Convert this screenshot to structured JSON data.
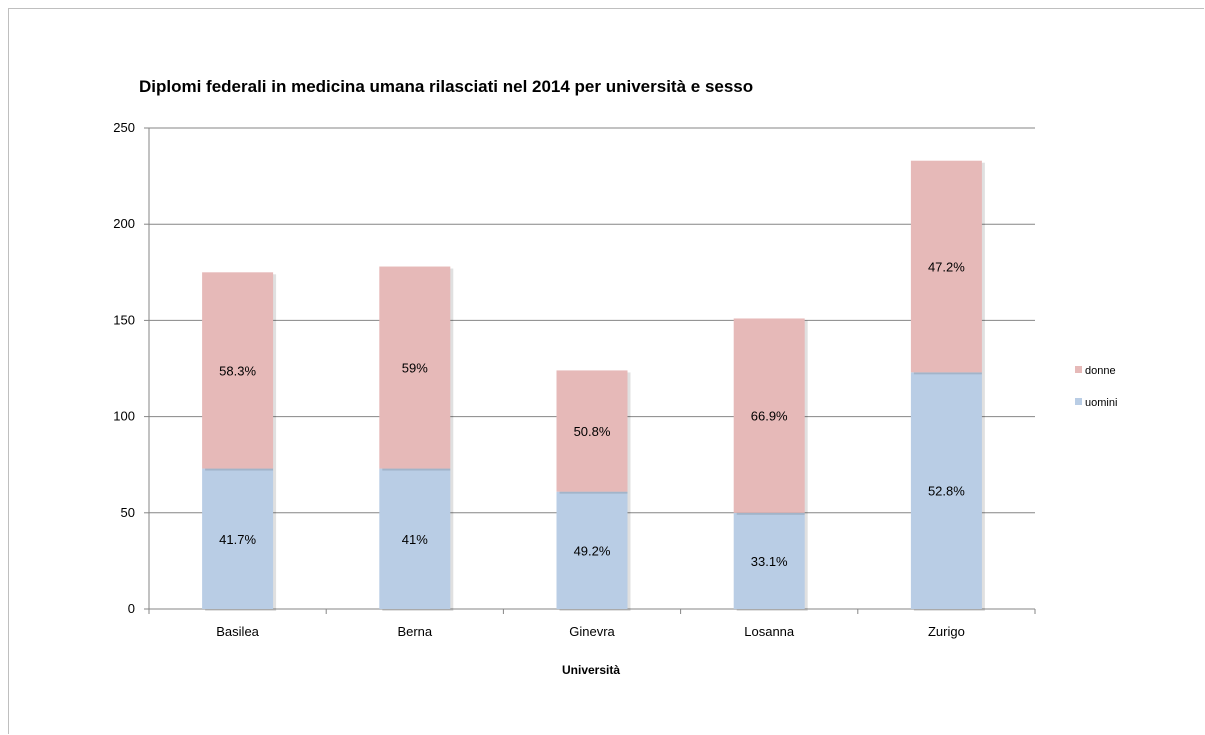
{
  "chart_data": {
    "type": "bar",
    "stacked": true,
    "title": "Diplomi federali in medicina umana rilasciati nel 2014 per università e sesso",
    "xlabel": "Università",
    "ylabel": "",
    "ylim": [
      0,
      250
    ],
    "yticks": [
      "0",
      "50",
      "100",
      "150",
      "200",
      "250"
    ],
    "grid": true,
    "legend_position": "right",
    "categories": [
      "Basilea",
      "Berna",
      "Ginevra",
      "Losanna",
      "Zurigo"
    ],
    "series": [
      {
        "name": "uomini",
        "color": "#b9cde5",
        "values": [
          73,
          73,
          61,
          50,
          123
        ],
        "labels": [
          "41.7%",
          "41%",
          "49.2%",
          "33.1%",
          "52.8%"
        ]
      },
      {
        "name": "donne",
        "color": "#e6b9b8",
        "values": [
          102,
          105,
          63,
          101,
          110
        ],
        "labels": [
          "58.3%",
          "59%",
          "50.8%",
          "66.9%",
          "47.2%"
        ]
      }
    ],
    "legend_order": [
      "donne",
      "uomini"
    ]
  }
}
